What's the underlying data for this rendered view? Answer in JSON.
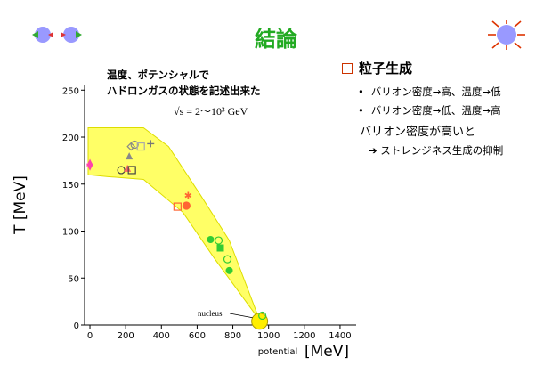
{
  "slide": {
    "title": "結論"
  },
  "bullets": {
    "heading": "粒子生成",
    "items": [
      "バリオン密度→高、温度→低",
      "バリオン密度→低、温度→高"
    ],
    "sub": "バリオン密度が高いと",
    "subsub": "➔ ストレンジネス生成の抑制"
  },
  "chart_data": {
    "type": "scatter",
    "annotation_line1": "温度、ポテンシャルで",
    "annotation_line2": "ハドロンガスの状態を記述出来た",
    "formula": "√s = 2〜10³ GeV",
    "xlabel_small": "potential",
    "xlabel_unit": "[MeV]",
    "ylabel": "T [MeV]",
    "xlim": [
      -30,
      1490
    ],
    "ylim": [
      0,
      255
    ],
    "xticks": [
      0,
      200,
      400,
      600,
      800,
      1000,
      1200,
      1400
    ],
    "yticks": [
      0,
      50,
      100,
      150,
      200,
      250
    ],
    "band_color": "#ffff66",
    "band_upper": [
      [
        -10,
        210
      ],
      [
        300,
        210
      ],
      [
        440,
        190
      ],
      [
        620,
        138
      ],
      [
        780,
        90
      ],
      [
        950,
        5
      ]
    ],
    "band_lower": [
      [
        950,
        5
      ],
      [
        700,
        70
      ],
      [
        520,
        120
      ],
      [
        300,
        155
      ],
      [
        100,
        158
      ],
      [
        -10,
        160
      ]
    ],
    "nucleus_label": "nucleus",
    "nucleus_point": {
      "x": 950,
      "y": 4
    },
    "points": [
      {
        "x": 0,
        "y": 173,
        "color": "#ff44aa",
        "shape": "tri-up"
      },
      {
        "x": 0,
        "y": 168,
        "color": "#ff44aa",
        "shape": "tri-down"
      },
      {
        "x": 175,
        "y": 165,
        "color": "#444444",
        "shape": "circle-open"
      },
      {
        "x": 210,
        "y": 167,
        "color": "#ff6666",
        "shape": "tri-up"
      },
      {
        "x": 220,
        "y": 180,
        "color": "#888888",
        "shape": "tri-up"
      },
      {
        "x": 230,
        "y": 190,
        "color": "#888888",
        "shape": "diamond-open"
      },
      {
        "x": 235,
        "y": 165,
        "color": "#444444",
        "shape": "square-open"
      },
      {
        "x": 250,
        "y": 192,
        "color": "#888888",
        "shape": "circle-open"
      },
      {
        "x": 285,
        "y": 190,
        "color": "#aaaaaa",
        "shape": "square-open"
      },
      {
        "x": 340,
        "y": 193,
        "color": "#777777",
        "shape": "cross"
      },
      {
        "x": 490,
        "y": 126,
        "color": "#ff6633",
        "shape": "square-open"
      },
      {
        "x": 540,
        "y": 127,
        "color": "#ff6633",
        "shape": "circle-half"
      },
      {
        "x": 550,
        "y": 138,
        "color": "#ff6633",
        "shape": "star"
      },
      {
        "x": 675,
        "y": 91,
        "color": "#33cc33",
        "shape": "circle"
      },
      {
        "x": 720,
        "y": 90,
        "color": "#33cc33",
        "shape": "circle-open"
      },
      {
        "x": 730,
        "y": 82,
        "color": "#33cc33",
        "shape": "square"
      },
      {
        "x": 770,
        "y": 70,
        "color": "#33cc33",
        "shape": "circle-open"
      },
      {
        "x": 780,
        "y": 58,
        "color": "#33cc33",
        "shape": "circle"
      },
      {
        "x": 965,
        "y": 10,
        "color": "#33cc33",
        "shape": "circle-open"
      }
    ]
  }
}
